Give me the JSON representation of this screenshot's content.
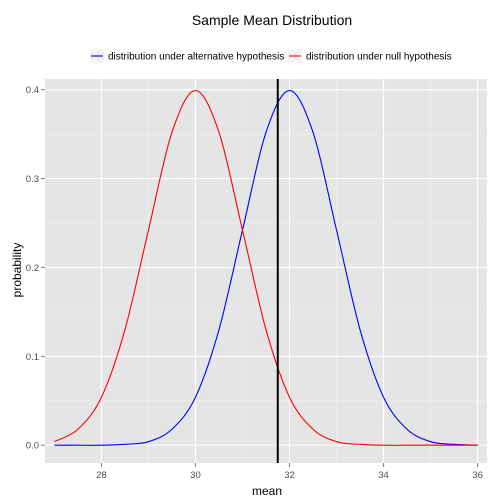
{
  "chart_data": {
    "type": "line",
    "title": "Sample Mean Distribution",
    "xlabel": "mean",
    "ylabel": "probability",
    "xlim": [
      26.8,
      36.2
    ],
    "ylim": [
      -0.02,
      0.412
    ],
    "x_ticks": [
      28,
      30,
      32,
      34,
      36
    ],
    "y_ticks": [
      0.0,
      0.1,
      0.2,
      0.3,
      0.4
    ],
    "x_tick_labels": [
      "28",
      "30",
      "32",
      "34",
      "36"
    ],
    "y_tick_labels": [
      "0.0",
      "0.1",
      "0.2",
      "0.3",
      "0.4"
    ],
    "grid": true,
    "legend_position": "top",
    "panel_background": "#e5e5e5",
    "series": [
      {
        "name": "distribution under alternative hypothesis",
        "color": "#0000ff",
        "x": [
          27.0,
          27.5,
          28.0,
          28.5,
          29.0,
          29.5,
          30.0,
          30.5,
          31.0,
          31.5,
          32.0,
          32.5,
          33.0,
          33.5,
          34.0,
          34.5,
          35.0,
          35.5,
          36.0
        ],
        "y": [
          0.0,
          0.0,
          0.0,
          0.001,
          0.004,
          0.018,
          0.054,
          0.13,
          0.242,
          0.352,
          0.399,
          0.352,
          0.242,
          0.13,
          0.054,
          0.018,
          0.004,
          0.001,
          0.0
        ]
      },
      {
        "name": "distribution under null hypothesis",
        "color": "#ff0000",
        "x": [
          27.0,
          27.5,
          28.0,
          28.5,
          29.0,
          29.5,
          30.0,
          30.5,
          31.0,
          31.5,
          32.0,
          32.5,
          33.0,
          33.5,
          34.0,
          34.5,
          35.0,
          35.5,
          36.0
        ],
        "y": [
          0.004,
          0.018,
          0.054,
          0.13,
          0.242,
          0.352,
          0.399,
          0.352,
          0.242,
          0.13,
          0.054,
          0.018,
          0.004,
          0.001,
          0.0,
          0.0,
          0.0,
          0.0,
          0.0
        ]
      }
    ],
    "annotations": [
      {
        "type": "vline",
        "x": 31.75,
        "color": "#000000"
      }
    ]
  }
}
